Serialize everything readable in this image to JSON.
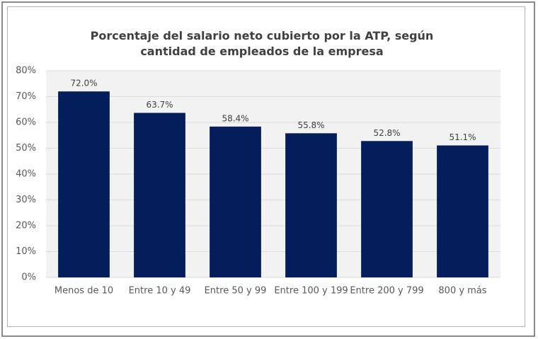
{
  "chart_data": {
    "type": "bar",
    "title": "Porcentaje del salario neto cubierto por la ATP, según cantidad de empleados de la empresa",
    "categories": [
      "Menos de 10",
      "Entre 10 y 49",
      "Entre 50 y 99",
      "Entre 100 y 199",
      "Entre 200 y 799",
      "800 y más"
    ],
    "values": [
      72.0,
      63.7,
      58.4,
      55.8,
      52.8,
      51.1
    ],
    "value_labels": [
      "72.0%",
      "63.7%",
      "58.4%",
      "55.8%",
      "52.8%",
      "51.1%"
    ],
    "color": "#041e5c",
    "ylim": [
      0,
      80
    ],
    "yticks": [
      {
        "value": 0,
        "label": "0%"
      },
      {
        "value": 10,
        "label": "10%"
      },
      {
        "value": 20,
        "label": "20%"
      },
      {
        "value": 30,
        "label": "30%"
      },
      {
        "value": 40,
        "label": "40%"
      },
      {
        "value": 50,
        "label": "50%"
      },
      {
        "value": 60,
        "label": "60%"
      },
      {
        "value": 70,
        "label": "70%"
      },
      {
        "value": 80,
        "label": "80%"
      }
    ],
    "grid": true
  }
}
